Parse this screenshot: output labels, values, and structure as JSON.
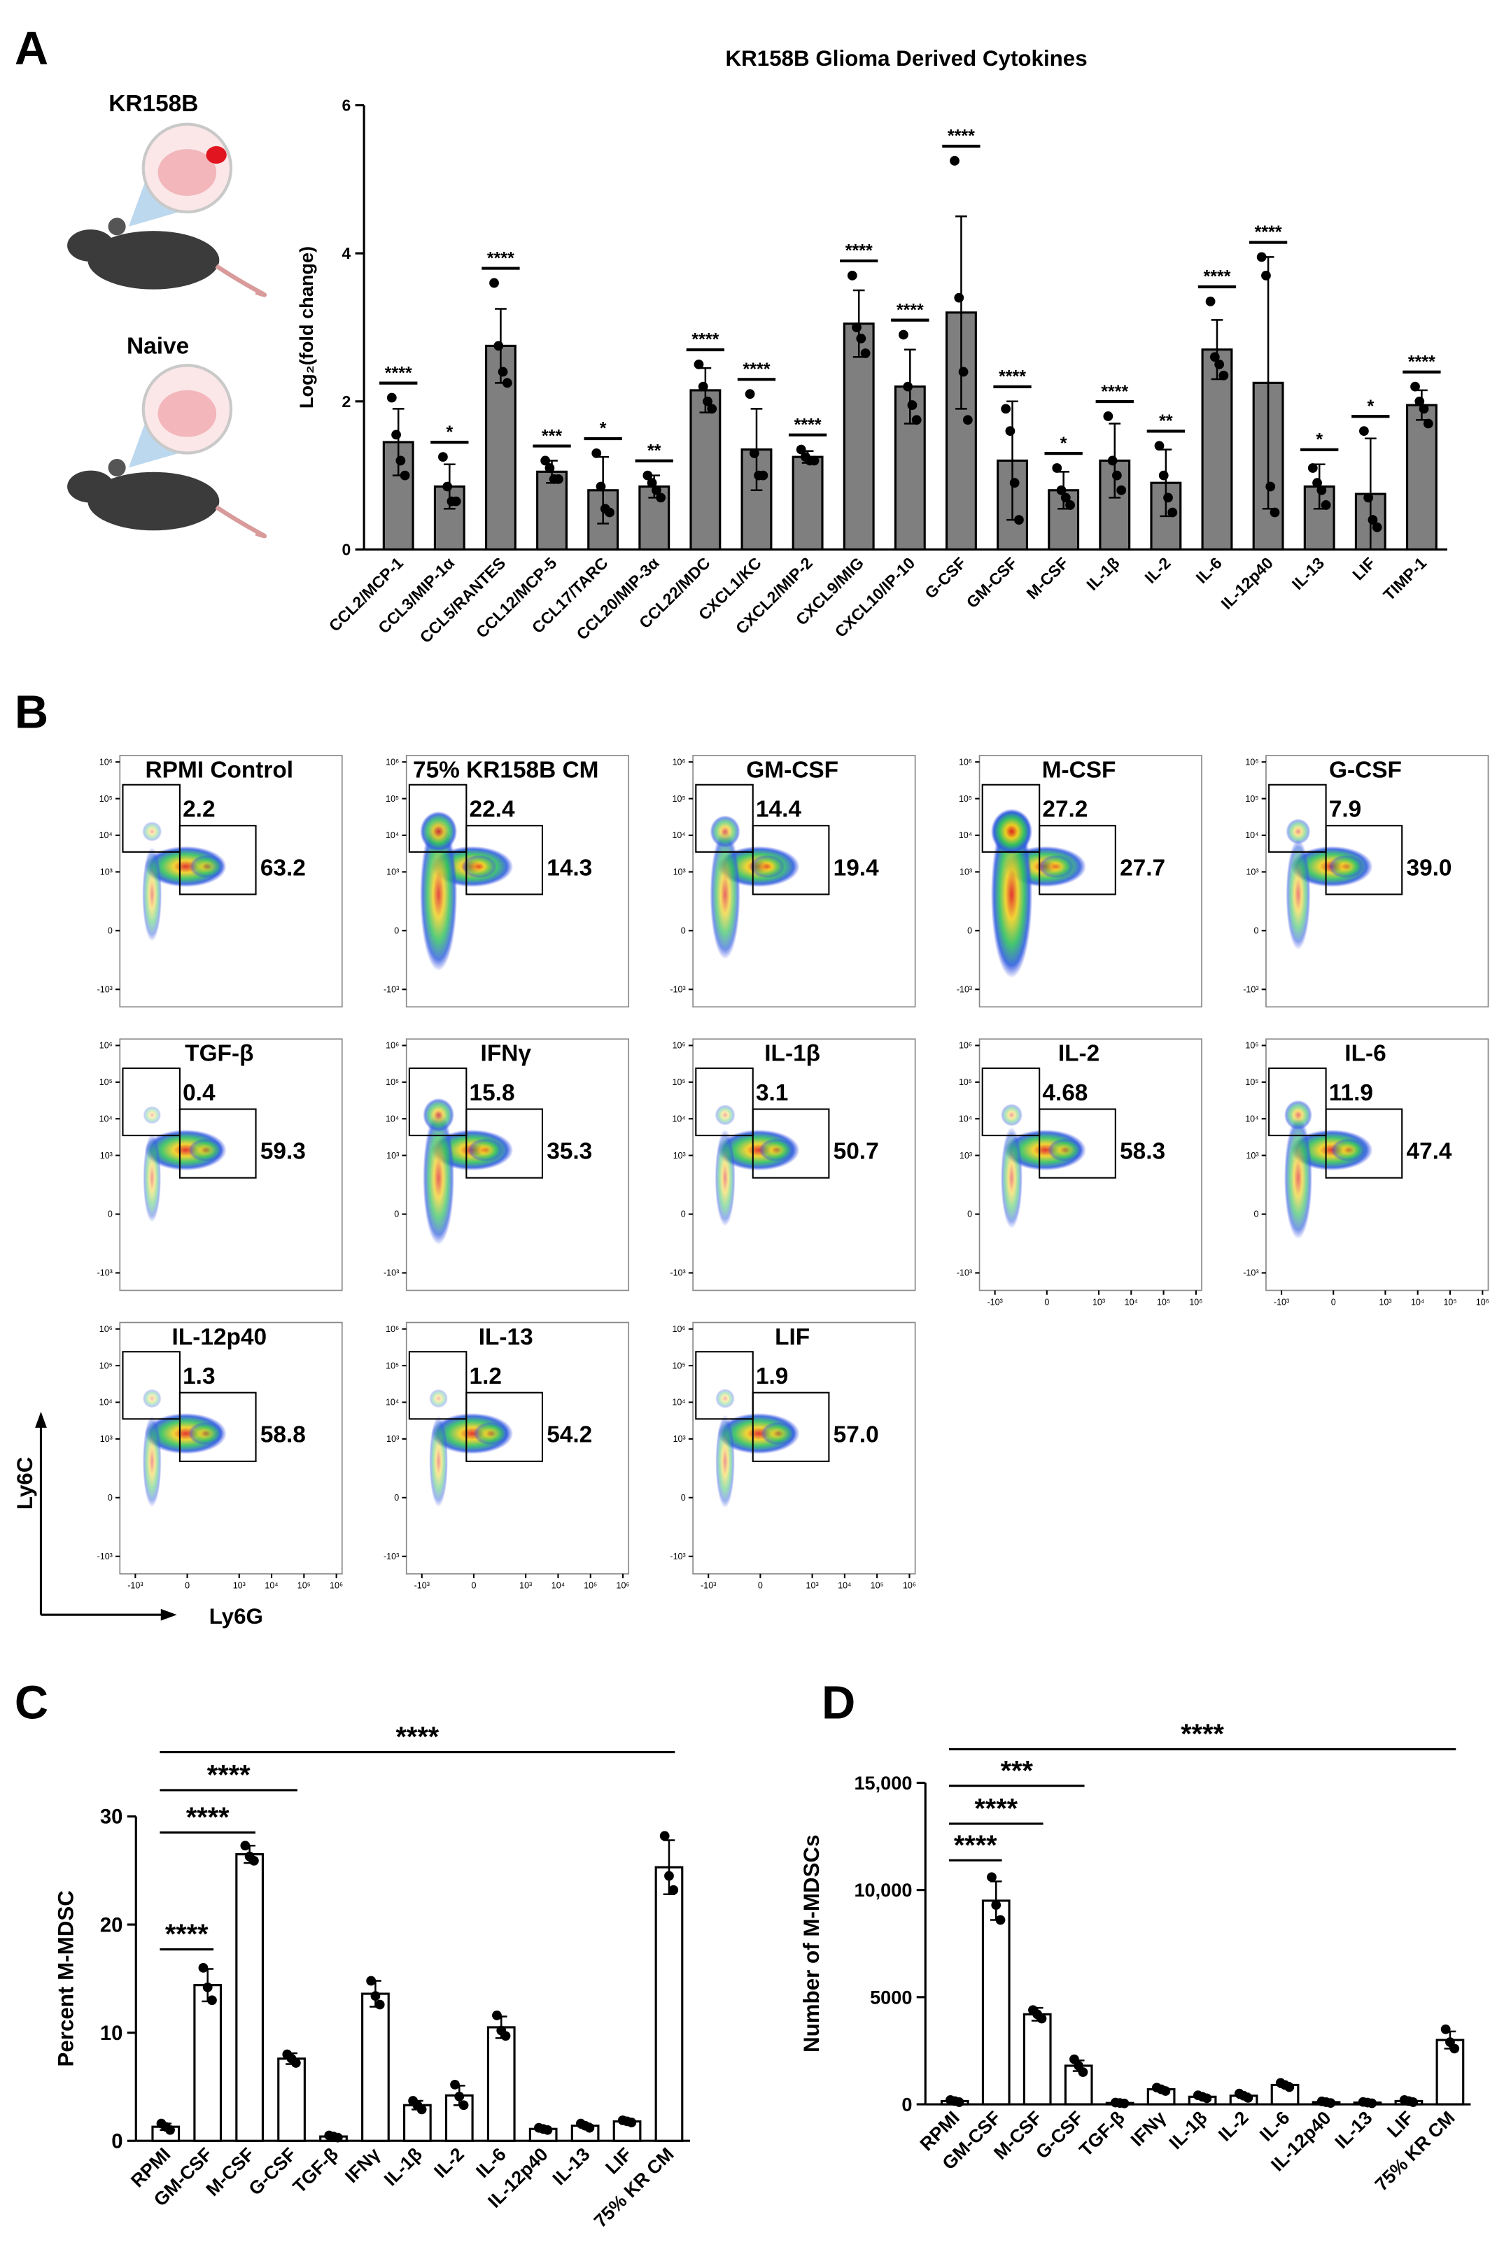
{
  "panels": [
    "A",
    "B",
    "C",
    "D"
  ],
  "illustration": {
    "labels": [
      "KR158B",
      "Naive"
    ]
  },
  "chart_data": [
    {
      "type": "bar",
      "title": "KR158B Glioma Derived Cytokines",
      "y_label": "Log₂(fold change)",
      "color": "#7f7f7f",
      "categories": [
        "CCL2/MCP-1",
        "CCL3/MIP-1α",
        "CCL5/RANTES",
        "CCL12/MCP-5",
        "CCL17/TARC",
        "CCL20/MIP-3α",
        "CCL22/MDC",
        "CXCL1/KC",
        "CXCL2/MIP-2",
        "CXCL9/MIG",
        "CXCL10/IP-10",
        "G-CSF",
        "GM-CSF",
        "M-CSF",
        "IL-1β",
        "IL-2",
        "IL-6",
        "IL-12p40",
        "IL-13",
        "LIF",
        "TIMP-1"
      ],
      "values": [
        1.45,
        0.85,
        2.75,
        1.05,
        0.8,
        0.85,
        2.15,
        1.35,
        1.25,
        3.05,
        2.2,
        3.2,
        1.2,
        0.8,
        1.2,
        0.9,
        2.7,
        2.25,
        0.85,
        0.75,
        1.95
      ],
      "errors": [
        0.45,
        0.3,
        0.5,
        0.15,
        0.45,
        0.15,
        0.3,
        0.55,
        0.08,
        0.45,
        0.5,
        1.3,
        0.8,
        0.25,
        0.5,
        0.45,
        0.4,
        1.7,
        0.3,
        0.75,
        0.2
      ],
      "points": [
        [
          2.05,
          1.55,
          1.2,
          1.0
        ],
        [
          1.25,
          0.85,
          0.65,
          0.65
        ],
        [
          3.6,
          2.75,
          2.4,
          2.25
        ],
        [
          1.2,
          1.1,
          0.95,
          0.95
        ],
        [
          1.3,
          0.85,
          0.55,
          0.5
        ],
        [
          1.0,
          0.9,
          0.8,
          0.7
        ],
        [
          2.5,
          2.2,
          2.0,
          1.9
        ],
        [
          2.1,
          1.3,
          1.0,
          1.0
        ],
        [
          1.35,
          1.25,
          1.2,
          1.2
        ],
        [
          3.7,
          3.0,
          2.85,
          2.65
        ],
        [
          2.9,
          2.2,
          1.95,
          1.75
        ],
        [
          5.25,
          3.4,
          2.4,
          1.75
        ],
        [
          1.9,
          1.6,
          0.9,
          0.4
        ],
        [
          1.1,
          0.8,
          0.7,
          0.6
        ],
        [
          1.8,
          1.2,
          1.0,
          0.8
        ],
        [
          1.4,
          1.0,
          0.7,
          0.5
        ],
        [
          3.35,
          2.6,
          2.5,
          2.35
        ],
        [
          3.95,
          3.7,
          0.85,
          0.5
        ],
        [
          1.1,
          0.9,
          0.8,
          0.6
        ],
        [
          1.6,
          0.7,
          0.4,
          0.3
        ],
        [
          2.2,
          2.0,
          1.9,
          1.7
        ]
      ],
      "significance": [
        "****",
        "*",
        "****",
        "***",
        "*",
        "**",
        "****",
        "****",
        "****",
        "****",
        "****",
        "****",
        "****",
        "*",
        "****",
        "**",
        "****",
        "****",
        "*",
        "*",
        "****"
      ],
      "ylim": [
        0,
        6
      ],
      "yticks": [
        0,
        2,
        4,
        6
      ]
    },
    {
      "type": "flow",
      "x_label": "Ly6G",
      "y_label": "Ly6C",
      "ticks": [
        {
          "value": -1000,
          "label": "-10³"
        },
        0,
        {
          "value": 1000,
          "label": "10³"
        },
        {
          "value": 10000,
          "label": "10⁴"
        },
        {
          "value": 100000,
          "label": "10⁵"
        },
        {
          "value": 1000000,
          "label": "10⁶"
        }
      ],
      "xlim": [
        -3000,
        1500000
      ],
      "ylim": [
        -3000,
        1500000
      ],
      "plots": [
        {
          "title": "RPMI Control",
          "values": [
            2.2,
            63.2
          ],
          "value_labels": [
            "2.2",
            "63.2"
          ]
        },
        {
          "title": "75% KR158B CM",
          "values": [
            22.4,
            14.3
          ],
          "value_labels": [
            "22.4",
            "14.3"
          ]
        },
        {
          "title": "GM-CSF",
          "values": [
            14.4,
            19.4
          ],
          "value_labels": [
            "14.4",
            "19.4"
          ]
        },
        {
          "title": "M-CSF",
          "values": [
            27.2,
            27.7
          ],
          "value_labels": [
            "27.2",
            "27.7"
          ]
        },
        {
          "title": "G-CSF",
          "values": [
            7.9,
            39.0
          ],
          "value_labels": [
            "7.9",
            "39.0"
          ]
        },
        {
          "title": "TGF-β",
          "values": [
            0.4,
            59.3
          ],
          "value_labels": [
            "0.4",
            "59.3"
          ]
        },
        {
          "title": "IFNγ",
          "values": [
            15.8,
            35.3
          ],
          "value_labels": [
            "15.8",
            "35.3"
          ]
        },
        {
          "title": "IL-1β",
          "values": [
            3.1,
            50.7
          ],
          "value_labels": [
            "3.1",
            "50.7"
          ]
        },
        {
          "title": "IL-2",
          "values": [
            4.68,
            58.3
          ],
          "value_labels": [
            "4.68",
            "58.3"
          ]
        },
        {
          "title": "IL-6",
          "values": [
            11.9,
            47.4
          ],
          "value_labels": [
            "11.9",
            "47.4"
          ]
        },
        {
          "title": "IL-12p40",
          "values": [
            1.3,
            58.8
          ],
          "value_labels": [
            "1.3",
            "58.8"
          ]
        },
        {
          "title": "IL-13",
          "values": [
            1.2,
            54.2
          ],
          "value_labels": [
            "1.2",
            "54.2"
          ]
        },
        {
          "title": "LIF",
          "values": [
            1.9,
            57.0
          ],
          "value_labels": [
            "1.9",
            "57.0"
          ]
        }
      ]
    },
    {
      "type": "bar",
      "y_label": "Percent M-MDSC",
      "color": "#ffffff",
      "categories": [
        "RPMI",
        "GM-CSF",
        "M-CSF",
        "G-CSF",
        "TGF-β",
        "IFNγ",
        "IL-1β",
        "IL-2",
        "IL-6",
        "IL-12p40",
        "IL-13",
        "LIF",
        "75% KR CM"
      ],
      "values": [
        1.3,
        14.4,
        26.5,
        7.6,
        0.4,
        13.6,
        3.3,
        4.2,
        10.5,
        1.1,
        1.4,
        1.8,
        25.3
      ],
      "errors": [
        0.3,
        1.5,
        0.8,
        0.5,
        0.1,
        1.2,
        0.4,
        0.9,
        1.0,
        0.1,
        0.2,
        0.1,
        2.5
      ],
      "points": [
        [
          1.6,
          1.3,
          1.0
        ],
        [
          16,
          14.2,
          13
        ],
        [
          27.3,
          26.3,
          25.9
        ],
        [
          8,
          7.6,
          7.2
        ],
        [
          0.5,
          0.4,
          0.3
        ],
        [
          14.8,
          13.4,
          12.6
        ],
        [
          3.7,
          3.3,
          2.9
        ],
        [
          5.2,
          4.1,
          3.3
        ],
        [
          11.6,
          10.2,
          9.7
        ],
        [
          1.2,
          1.1,
          1.0
        ],
        [
          1.6,
          1.4,
          1.2
        ],
        [
          1.9,
          1.8,
          1.7
        ],
        [
          28.2,
          24.5,
          23.2
        ]
      ],
      "comparisons": [
        {
          "from": 0,
          "to": 1,
          "label": "****"
        },
        {
          "from": 0,
          "to": 2,
          "label": "****"
        },
        {
          "from": 0,
          "to": 3,
          "label": "****"
        },
        {
          "from": 0,
          "to": 12,
          "label": "****"
        }
      ],
      "ylim": [
        0,
        30
      ],
      "yticks": [
        0,
        10,
        20,
        30
      ]
    },
    {
      "type": "bar",
      "y_label": "Number of M-MDSCs",
      "color": "#ffffff",
      "categories": [
        "RPMI",
        "GM-CSF",
        "M-CSF",
        "G-CSF",
        "TGF-β",
        "IFNγ",
        "IL-1β",
        "IL-2",
        "IL-6",
        "IL-12p40",
        "IL-13",
        "LIF",
        "75% KR CM"
      ],
      "values": [
        150,
        9500,
        4200,
        1800,
        60,
        700,
        350,
        400,
        900,
        100,
        80,
        150,
        3000
      ],
      "errors": [
        50,
        900,
        300,
        250,
        30,
        80,
        60,
        100,
        100,
        40,
        30,
        50,
        400
      ],
      "points": [
        [
          200,
          150,
          100
        ],
        [
          10600,
          9300,
          8600
        ],
        [
          4400,
          4200,
          4000
        ],
        [
          2100,
          1800,
          1500
        ],
        [
          80,
          60,
          40
        ],
        [
          780,
          700,
          620
        ],
        [
          420,
          350,
          280
        ],
        [
          500,
          400,
          300
        ],
        [
          1000,
          900,
          800
        ],
        [
          140,
          100,
          60
        ],
        [
          110,
          80,
          50
        ],
        [
          200,
          150,
          100
        ],
        [
          3500,
          2900,
          2600
        ]
      ],
      "comparisons": [
        {
          "from": 0,
          "to": 1,
          "label": "****"
        },
        {
          "from": 0,
          "to": 2,
          "label": "****"
        },
        {
          "from": 0,
          "to": 3,
          "label": "***"
        },
        {
          "from": 0,
          "to": 12,
          "label": "****"
        }
      ],
      "ylim": [
        0,
        15000
      ],
      "yticks": [
        0,
        5000,
        {
          "value": 10000,
          "label": "10,000"
        },
        {
          "value": 15000,
          "label": "15,000"
        }
      ]
    }
  ]
}
